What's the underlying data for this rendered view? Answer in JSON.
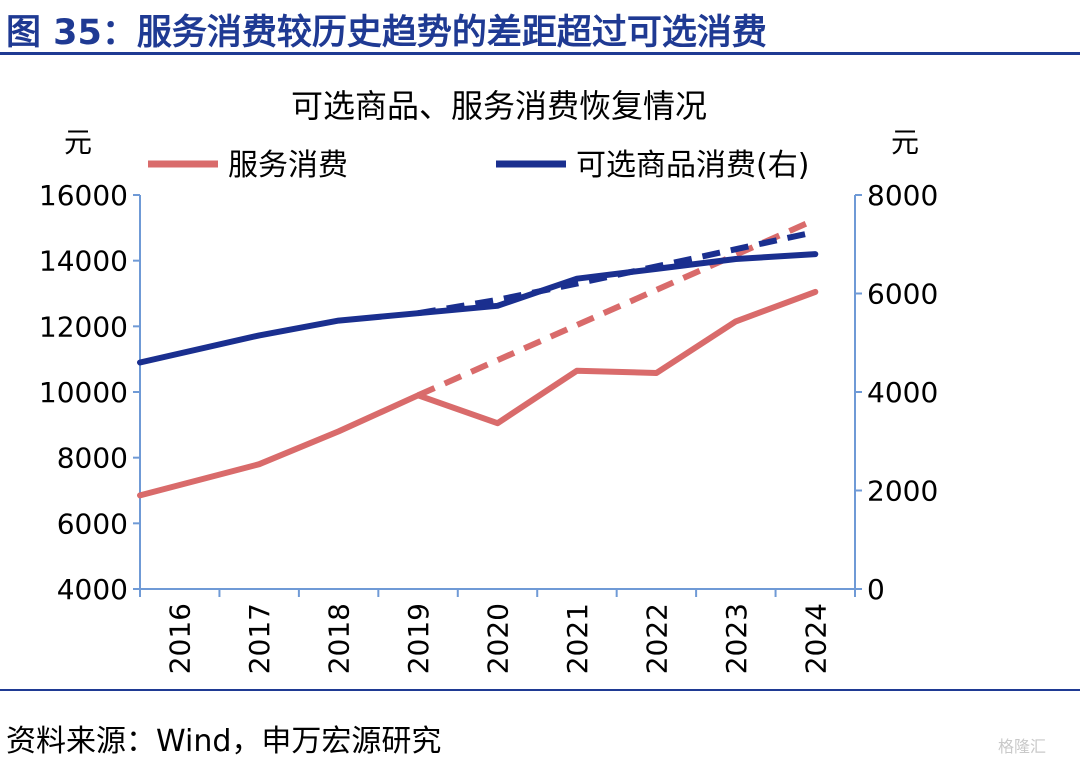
{
  "figure": {
    "title": "图 35：服务消费较历史趋势的差距超过可选消费",
    "source": "资料来源：Wind，申万宏源研究",
    "watermark": "格隆汇"
  },
  "colors": {
    "services": "#d96b6b",
    "goods": "#1a2f8f",
    "axis": "#6f9ad6",
    "title": "#1f3a93"
  },
  "chart_data": {
    "type": "line",
    "title": "可选商品、服务消费恢复情况",
    "y_left_unit": "元",
    "y_right_unit": "元",
    "x": [
      "2016",
      "2017",
      "2018",
      "2019",
      "2020",
      "2021",
      "2022",
      "2023",
      "2024"
    ],
    "y_left": {
      "ylim": [
        4000,
        16000
      ],
      "ticks": [
        "4000",
        "6000",
        "8000",
        "10000",
        "12000",
        "14000",
        "16000"
      ]
    },
    "y_right": {
      "ylim": [
        0,
        8000
      ],
      "ticks": [
        "0",
        "2000",
        "4000",
        "6000",
        "8000"
      ]
    },
    "legend_position": "top",
    "series": [
      {
        "name": "服务消费",
        "axis": "left",
        "color": "#d96b6b",
        "values": [
          6850,
          7800,
          8800,
          9900,
          9050,
          10650,
          10580,
          12150,
          13050
        ]
      },
      {
        "name": "可选商品消费(右)",
        "axis": "right",
        "color": "#1a2f8f",
        "values": [
          4600,
          5150,
          5450,
          5600,
          5750,
          6300,
          6500,
          6700,
          6800
        ]
      }
    ],
    "trend_lines": [
      {
        "of": "服务消费",
        "axis": "left",
        "style": "dashed",
        "x": [
          "2019",
          "2024"
        ],
        "values": [
          9900,
          15250
        ]
      },
      {
        "of": "可选商品消费(右)",
        "axis": "right",
        "style": "dashed",
        "x": [
          "2019",
          "2020",
          "2021",
          "2022",
          "2023",
          "2024"
        ],
        "values": [
          5600,
          5870,
          6200,
          6550,
          6900,
          7250
        ]
      }
    ],
    "grid": false
  }
}
